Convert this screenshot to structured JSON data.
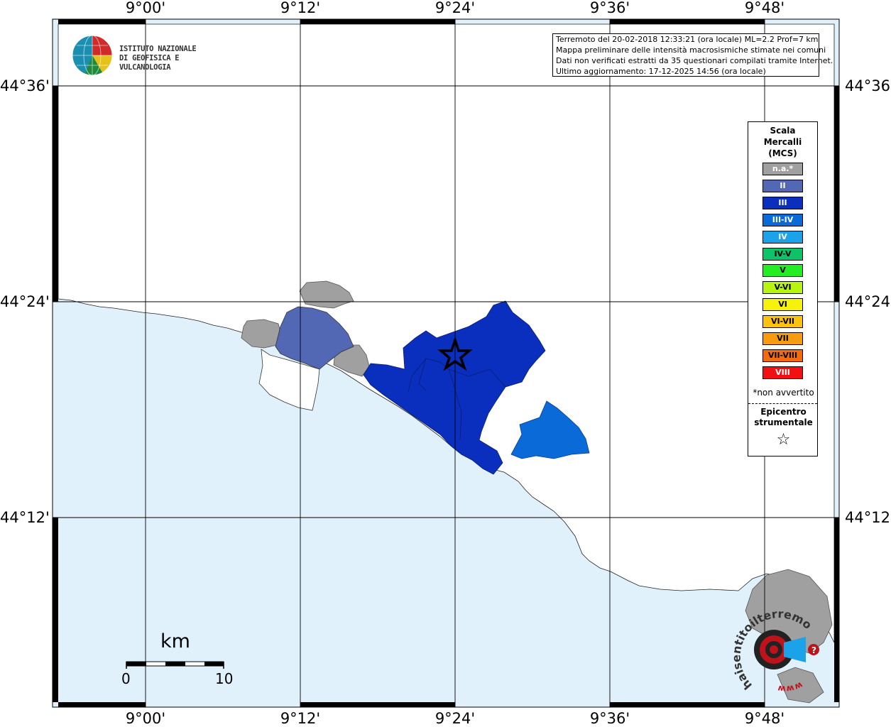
{
  "map": {
    "lon_labels": [
      "9°00'",
      "9°12'",
      "9°24'",
      "9°36'",
      "9°48'"
    ],
    "lat_labels": [
      "44°36'",
      "44°24'",
      "44°12'"
    ],
    "sea_color": "#e0f1fc",
    "land_color": "#ffffff",
    "graticule_color": "#000000"
  },
  "logo": {
    "line1": "ISTITUTO NAZIONALE",
    "line2": "DI GEOFISICA E VULCANOLOGIA"
  },
  "info": {
    "line1": "Terremoto del 20-02-2018 12:33:21 (ora locale) ML=2.2 Prof=7 km",
    "line2": "Mappa preliminare delle intensità macrosismiche stimate nei comuni",
    "line3": "Dati non verificati estratti da 35 questionari compilati tramite Internet.",
    "line4": "Ultimo aggiornamento: 17-12-2025 14:56 (ora locale)"
  },
  "legend": {
    "title1": "Scala",
    "title2": "Mercalli",
    "title3": "(MCS)",
    "items": [
      {
        "label": "n.a.*",
        "color": "#a0a0a0"
      },
      {
        "label": "II",
        "color": "#5368b5"
      },
      {
        "label": "III",
        "color": "#0a2fbe"
      },
      {
        "label": "III-IV",
        "color": "#0a6ad8"
      },
      {
        "label": "IV",
        "color": "#1ba2e8"
      },
      {
        "label": "IV-V",
        "color": "#0ec26a"
      },
      {
        "label": "V",
        "color": "#22ee22"
      },
      {
        "label": "V-VI",
        "color": "#b7f511"
      },
      {
        "label": "VI",
        "color": "#f7f20c"
      },
      {
        "label": "VI-VII",
        "color": "#fbc30d"
      },
      {
        "label": "VII",
        "color": "#f79c0e"
      },
      {
        "label": "VII-VIII",
        "color": "#f56a0c"
      },
      {
        "label": "VIII",
        "color": "#f21010"
      }
    ],
    "note": "*non avvertito",
    "epicenter1": "Epicentro",
    "epicenter2": "strumentale",
    "star": "☆"
  },
  "scale": {
    "unit": "km",
    "min": "0",
    "max": "10"
  },
  "badge": {
    "text": "haisentitoilterremoto.it",
    "url_text": "www."
  }
}
